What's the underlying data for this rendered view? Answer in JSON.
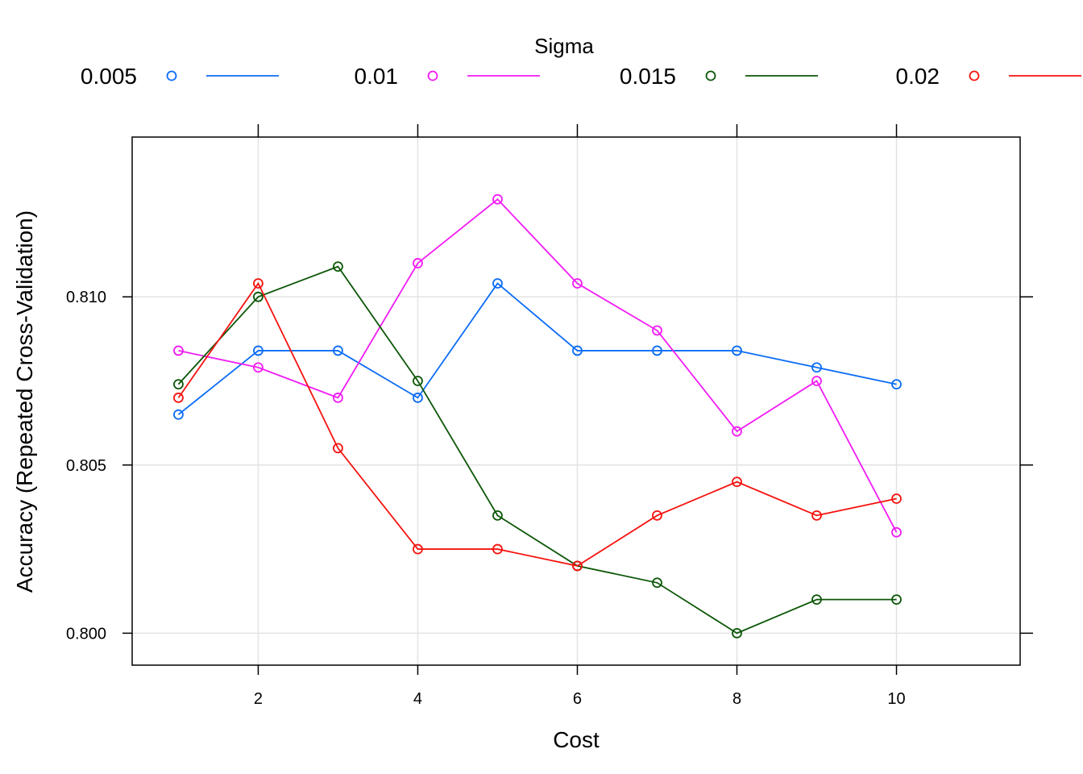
{
  "chart_data": {
    "type": "line",
    "legend_title": "Sigma",
    "legend_position": "top",
    "xlabel": "Cost",
    "ylabel": "Accuracy (Repeated Cross-Validation)",
    "x": [
      1,
      2,
      3,
      4,
      5,
      6,
      7,
      8,
      9,
      10
    ],
    "xlim": [
      0.42,
      11.55
    ],
    "ylim": [
      0.79905,
      0.81475
    ],
    "x_ticks": [
      2,
      4,
      6,
      8,
      10
    ],
    "x_tick_labels": [
      "2",
      "4",
      "6",
      "8",
      "10"
    ],
    "y_ticks": [
      0.8,
      0.805,
      0.81
    ],
    "y_tick_labels": [
      "0.800",
      "0.805",
      "0.810"
    ],
    "grid": true,
    "series": [
      {
        "name": "0.005",
        "color": "#0b6cf5",
        "values": [
          0.8065,
          0.8084,
          0.8084,
          0.807,
          0.8104,
          0.8084,
          0.8084,
          0.8084,
          0.8079,
          0.8074
        ]
      },
      {
        "name": "0.01",
        "color": "#f21cf5",
        "values": [
          0.8084,
          0.8079,
          0.807,
          0.811,
          0.8129,
          0.8104,
          0.809,
          0.806,
          0.8075,
          0.803
        ]
      },
      {
        "name": "0.015",
        "color": "#0c5708",
        "values": [
          0.8074,
          0.81,
          0.8109,
          0.8075,
          0.8035,
          0.802,
          0.8015,
          0.8,
          0.801,
          0.801
        ]
      },
      {
        "name": "0.02",
        "color": "#f5130f",
        "values": [
          0.807,
          0.8104,
          0.8055,
          0.8025,
          0.8025,
          0.802,
          0.8035,
          0.8045,
          0.8035,
          0.804
        ]
      }
    ]
  }
}
